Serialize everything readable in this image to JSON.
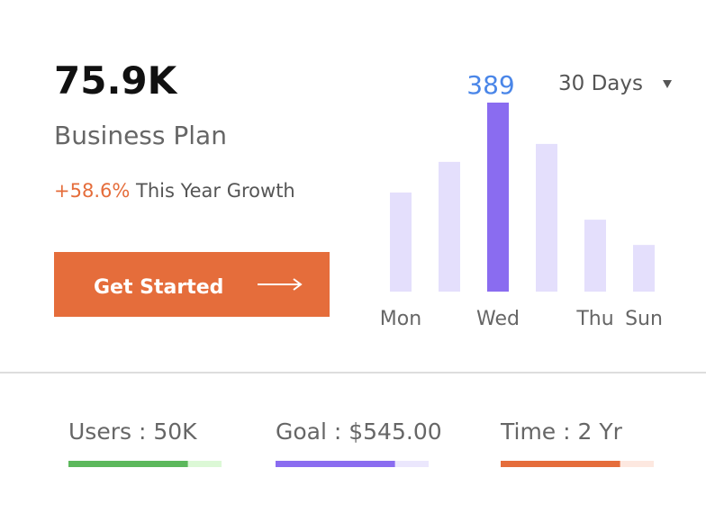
{
  "header": {
    "value": "75.9K",
    "title": "Business Plan",
    "growth": "+58.6%",
    "growth_text": "This Year Growth",
    "button": "Get Started"
  },
  "period": "30 Days",
  "chart_data": {
    "type": "bar",
    "categories": [
      "Mon",
      null,
      "Wed",
      null,
      "Thu",
      "Sun"
    ],
    "values": [
      204,
      267,
      389,
      304,
      148,
      96
    ],
    "color": "#e4dffc",
    "highlight_color": "#8a6cf0",
    "highlight": 2,
    "value_label_color": "#4a86e8"
  },
  "stats": [
    {
      "label": "Users : 50K",
      "progress": 78,
      "color": "#5cb85c",
      "track": "#dcf8d6"
    },
    {
      "label": "Goal : $545.00",
      "progress": 78,
      "color": "#8a6cf0",
      "track": "#ebe7fd"
    },
    {
      "label": "Time : 2 Yr",
      "progress": 78,
      "color": "#e56d3b",
      "track": "#fde8e0"
    }
  ]
}
